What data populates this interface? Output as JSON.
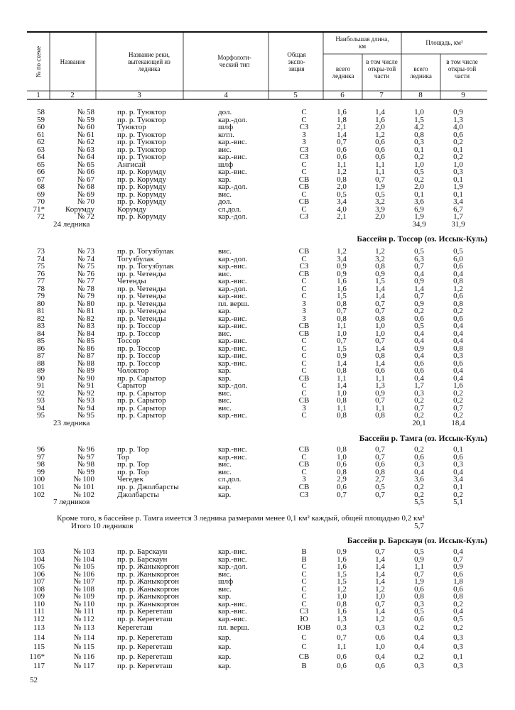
{
  "header": {
    "col1": "№ по схеме",
    "col2": "Название",
    "col3": "Название реки, вытекающей из ледника",
    "col4": "Морфологи-ческий тип",
    "col5": "Общая экспо-зиция",
    "length_group": "Наибольшая длина, км",
    "area_group": "Площадь, км²",
    "total": "всего ледника",
    "open": "в том числе откры-той части",
    "numbers": [
      "1",
      "2",
      "3",
      "4",
      "5",
      "6",
      "7",
      "8",
      "9"
    ]
  },
  "sections": [
    {
      "rows": [
        [
          "58",
          "№ 58",
          "пр. р. Туюктор",
          "дол.",
          "С",
          "1,6",
          "1,4",
          "1,0",
          "0,9"
        ],
        [
          "59",
          "№ 59",
          "пр. р. Туюктор",
          "кар.-дол.",
          "С",
          "1,8",
          "1,6",
          "1,5",
          "1,3"
        ],
        [
          "60",
          "№ 60",
          "Туюктор",
          "шлф",
          "СЗ",
          "2,1",
          "2,0",
          "4,2",
          "4,0"
        ],
        [
          "61",
          "№ 61",
          "пр. р. Туюктор",
          "котл.",
          "З",
          "1,4",
          "1,2",
          "0,8",
          "0,6"
        ],
        [
          "62",
          "№ 62",
          "пр. р. Туюктор",
          "кар.-вис.",
          "З",
          "0,7",
          "0,6",
          "0,3",
          "0,2"
        ],
        [
          "63",
          "№ 63",
          "пр. р. Туюктор",
          "вис.",
          "СЗ",
          "0,6",
          "0,6",
          "0,1",
          "0,1"
        ],
        [
          "64",
          "№ 64",
          "пр. р. Туюктор",
          "кар.-вис.",
          "СЗ",
          "0,6",
          "0,6",
          "0,2",
          "0,2"
        ],
        [
          "65",
          "№ 65",
          "Ангисай",
          "шлф",
          "С",
          "1,1",
          "1,1",
          "1,0",
          "1,0"
        ],
        [
          "66",
          "№ 66",
          "пр. р. Корумду",
          "кар.-вис.",
          "С",
          "1,2",
          "1,1",
          "0,5",
          "0,3"
        ],
        [
          "67",
          "№ 67",
          "пр. р. Корумду",
          "кар.",
          "СВ",
          "0,8",
          "0,7",
          "0,2",
          "0,1"
        ],
        [
          "68",
          "№ 68",
          "пр. р. Корумду",
          "кар.-дол.",
          "СВ",
          "2,0",
          "1,9",
          "2,0",
          "1,9"
        ],
        [
          "69",
          "№ 69",
          "пр. р. Корумду",
          "вис.",
          "С",
          "0,5",
          "0,5",
          "0,1",
          "0,1"
        ],
        [
          "70",
          "№ 70",
          "пр. р. Корумду",
          "дол.",
          "СВ",
          "3,4",
          "3,2",
          "3,6",
          "3,4"
        ],
        [
          "71*",
          "Корумду",
          "Корумду",
          "сл.дол.",
          "С",
          "4,0",
          "3,9",
          "6,9",
          "6,7"
        ],
        [
          "72",
          "№ 72",
          "пр. р. Корумду",
          "кар.-дол.",
          "СЗ",
          "2,1",
          "2,0",
          "1,9",
          "1,7"
        ]
      ],
      "total": {
        "label": "24 ледника",
        "area_total": "34,9",
        "area_open": "31,9"
      }
    },
    {
      "heading": "Бассейн р. Тоссор (оз. Иссык-Куль)",
      "rows": [
        [
          "73",
          "№ 73",
          "пр. р. Тогузбулак",
          "вис.",
          "СВ",
          "1,2",
          "1,2",
          "0,5",
          "0,5"
        ],
        [
          "74",
          "№ 74",
          "Тогузбулак",
          "кар.-дол.",
          "С",
          "3,4",
          "3,2",
          "6,3",
          "6,0"
        ],
        [
          "75",
          "№ 75",
          "пр. р. Тогузбулак",
          "кар.-вис.",
          "СЗ",
          "0,9",
          "0,8",
          "0,7",
          "0,6"
        ],
        [
          "76",
          "№ 76",
          "пр. р. Четенды",
          "вис.",
          "СВ",
          "0,9",
          "0,9",
          "0,4",
          "0,4"
        ],
        [
          "77",
          "№ 77",
          "Четенды",
          "кар.-вис.",
          "С",
          "1,6",
          "1,5",
          "0,9",
          "0,8"
        ],
        [
          "78",
          "№ 78",
          "пр. р. Четенды",
          "кар.-дол.",
          "С",
          "1,6",
          "1,4",
          "1,4",
          "1,2"
        ],
        [
          "79",
          "№ 79",
          "пр. р. Четенды",
          "кар.-вис.",
          "С",
          "1,5",
          "1,4",
          "0,7",
          "0,6"
        ],
        [
          "80",
          "№ 80",
          "пр. р. Четенды",
          "пл. верш.",
          "З",
          "0,8",
          "0,7",
          "0,9",
          "0,8"
        ],
        [
          "81",
          "№ 81",
          "пр. р. Четенды",
          "кар.",
          "З",
          "0,7",
          "0,7",
          "0,2",
          "0,2"
        ],
        [
          "82",
          "№ 82",
          "пр. р. Четенды",
          "кар.-вис.",
          "З",
          "0,8",
          "0,8",
          "0,6",
          "0,6"
        ],
        [
          "83",
          "№ 83",
          "пр. р. Тоссор",
          "кар.-вис.",
          "СВ",
          "1,1",
          "1,0",
          "0,5",
          "0,4"
        ],
        [
          "84",
          "№ 84",
          "пр. р. Тоссор",
          "вис.",
          "СВ",
          "1,0",
          "1,0",
          "0,4",
          "0,4"
        ],
        [
          "85",
          "№ 85",
          "Тоссор",
          "кар.-вис.",
          "С",
          "0,7",
          "0,7",
          "0,4",
          "0,4"
        ],
        [
          "86",
          "№ 86",
          "пр. р. Тоссор",
          "кар.-вис.",
          "С",
          "1,5",
          "1,4",
          "0,9",
          "0,8"
        ],
        [
          "87",
          "№ 87",
          "пр. р. Тоссор",
          "кар.-вис.",
          "С",
          "0,9",
          "0,8",
          "0,4",
          "0,3"
        ],
        [
          "88",
          "№ 88",
          "пр. р. Тоссор",
          "кар.-вис.",
          "С",
          "1,4",
          "1,4",
          "0,6",
          "0,6"
        ],
        [
          "89",
          "№ 89",
          "Чолоктор",
          "кар.",
          "С",
          "0,8",
          "0,6",
          "0,6",
          "0,4"
        ],
        [
          "90",
          "№ 90",
          "пр. р. Сарытор",
          "кар.",
          "СВ",
          "1,1",
          "1,1",
          "0,4",
          "0,4"
        ],
        [
          "91",
          "№ 91",
          "Сарытор",
          "кар.-дол.",
          "С",
          "1,4",
          "1,3",
          "1,7",
          "1,6"
        ],
        [
          "92",
          "№ 92",
          "пр. р. Сарытор",
          "вис.",
          "С",
          "1,0",
          "0,9",
          "0,3",
          "0,2"
        ],
        [
          "93",
          "№ 93",
          "пр. р. Сарытор",
          "вис.",
          "СВ",
          "0,8",
          "0,7",
          "0,2",
          "0,2"
        ],
        [
          "94",
          "№ 94",
          "пр. р. Сарытор",
          "вис.",
          "З",
          "1,1",
          "1,1",
          "0,7",
          "0,7"
        ],
        [
          "95",
          "№ 95",
          "пр. р. Сарытор",
          "кар.-вис.",
          "С",
          "0,8",
          "0,8",
          "0,2",
          "0,2"
        ]
      ],
      "total": {
        "label": "23 ледника",
        "area_total": "20,1",
        "area_open": "18,4"
      }
    },
    {
      "heading": "Бассейн р. Тамга (оз. Иссык-Куль)",
      "rows": [
        [
          "96",
          "№ 96",
          "пр. р. Тор",
          "кар.-вис.",
          "СВ",
          "0,8",
          "0,7",
          "0,2",
          "0,1"
        ],
        [
          "97",
          "№ 97",
          "Тор",
          "кар.-вис.",
          "С",
          "1,0",
          "0,7",
          "0,6",
          "0,6"
        ],
        [
          "98",
          "№ 98",
          "пр. р. Тор",
          "вис.",
          "СВ",
          "0,6",
          "0,6",
          "0,3",
          "0,3"
        ],
        [
          "99",
          "№ 99",
          "пр. р. Тор",
          "вис.",
          "С",
          "0,8",
          "0,8",
          "0,4",
          "0,4"
        ],
        [
          "100",
          "№ 100",
          "Чегедек",
          "сл.дол.",
          "З",
          "2,9",
          "2,7",
          "3,6",
          "3,4"
        ],
        [
          "101",
          "№ 101",
          "пр. р. Джолбарсты",
          "кар.",
          "СВ",
          "0,6",
          "0,5",
          "0,2",
          "0,1"
        ],
        [
          "102",
          "№ 102",
          "Джолбарсты",
          "кар.",
          "СЗ",
          "0,7",
          "0,7",
          "0,2",
          "0,2"
        ]
      ],
      "total": {
        "label": "7 ледников",
        "area_total": "5,5",
        "area_open": "5,1"
      },
      "note": "Кроме того, в бассейне р. Тамга имеется 3 ледника размерами менее 0,1 км² каждый, общей площадью 0,2 км²",
      "grand_total": {
        "label": "Итого 10 ледников",
        "area_total": "5,7"
      }
    },
    {
      "heading": "Бассейн р. Барскаун (оз. Иссык-Куль)",
      "rows": [
        [
          "103",
          "№ 103",
          "пр. р. Барскаун",
          "кар.-вис.",
          "В",
          "0,9",
          "0,7",
          "0,5",
          "0,4"
        ],
        [
          "104",
          "№ 104",
          "пр. р. Барскаун",
          "кар.-вис.",
          "В",
          "1,6",
          "1,4",
          "0,9",
          "0,7"
        ],
        [
          "105",
          "№ 105",
          "пр. р. Жаныкоргон",
          "кар.-дол.",
          "С",
          "1,6",
          "1,4",
          "1,1",
          "0,9"
        ],
        [
          "106",
          "№ 106",
          "пр. р. Жаныкоргон",
          "вис.",
          "С",
          "1,5",
          "1,4",
          "0,7",
          "0,6"
        ],
        [
          "107",
          "№ 107",
          "пр. р. Жаныкоргон",
          "шлф",
          "С",
          "1,5",
          "1,4",
          "1,9",
          "1,8"
        ],
        [
          "108",
          "№ 108",
          "пр. р. Жаныкоргон",
          "вис.",
          "С",
          "1,2",
          "1,2",
          "0,6",
          "0,6"
        ],
        [
          "109",
          "№ 109",
          "пр. р. Жаныкоргон",
          "кар.",
          "С",
          "1,0",
          "1,0",
          "0,8",
          "0,8"
        ],
        [
          "110",
          "№ 110",
          "пр. р. Жаныкоргон",
          "кар.-вис.",
          "С",
          "0,8",
          "0,7",
          "0,3",
          "0,2"
        ],
        [
          "111",
          "№ 111",
          "пр. р. Керегеташ",
          "кар.-вис.",
          "СЗ",
          "1,6",
          "1,4",
          "0,5",
          "0,4"
        ],
        [
          "112",
          "№ 112",
          "пр. р. Керегеташ",
          "кар.-вис.",
          "Ю",
          "1,3",
          "1,2",
          "0,6",
          "0,5"
        ],
        [
          "113",
          "№ 113",
          "Керегеташ",
          "пл. верш.",
          "ЮВ",
          "0,3",
          "0,3",
          "0,2",
          "0,2"
        ],
        [
          "114",
          "№ 114",
          "пр. р. Керегеташ",
          "кар.",
          "С",
          "0,7",
          "0,6",
          "0,4",
          "0,3"
        ],
        [
          "115",
          "№ 115",
          "пр. р. Керегеташ",
          "кар.",
          "С",
          "1,1",
          "1,0",
          "0,4",
          "0,3"
        ],
        [
          "116*",
          "№ 116",
          "пр. р. Керегеташ",
          "кар.",
          "СВ",
          "0,6",
          "0,4",
          "0,2",
          "0,1"
        ],
        [
          "117",
          "№ 117",
          "пр. р. Керегеташ",
          "кар.",
          "В",
          "0,6",
          "0,6",
          "0,3",
          "0,3"
        ]
      ]
    }
  ],
  "page_number": "52"
}
